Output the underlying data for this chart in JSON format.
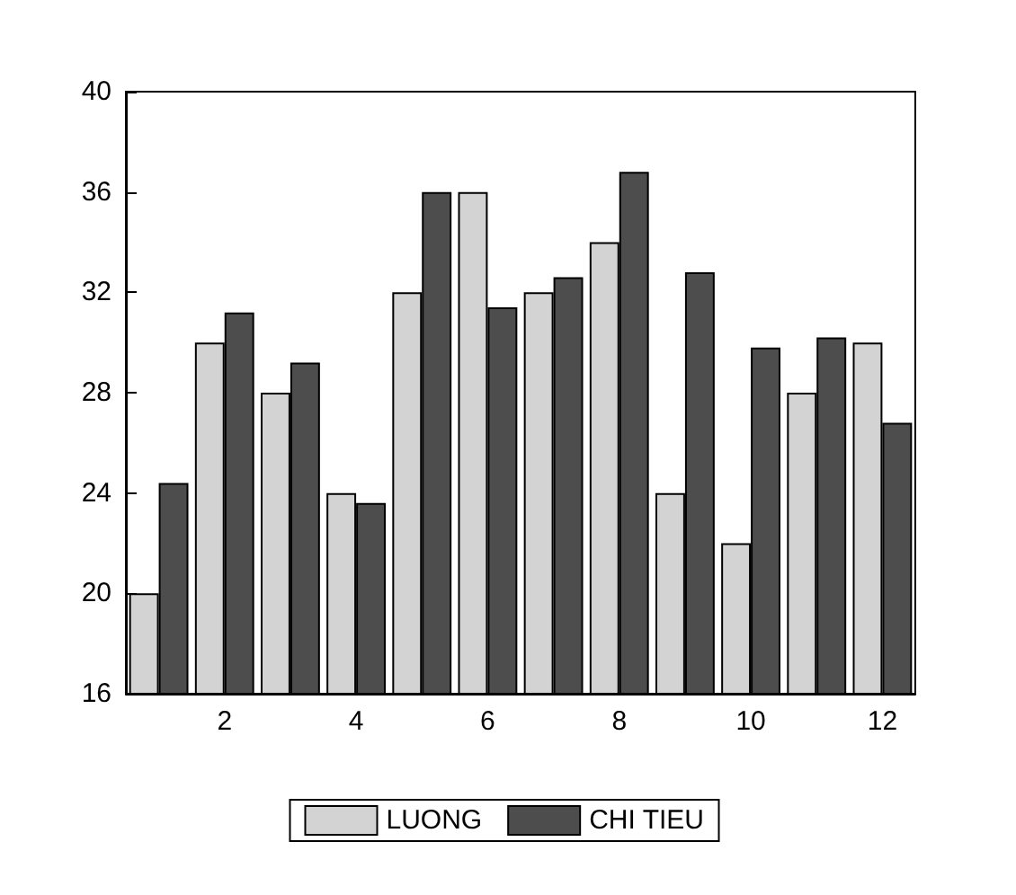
{
  "chart_data": {
    "type": "bar",
    "categories": [
      null,
      "2",
      null,
      "4",
      null,
      "6",
      null,
      "8",
      null,
      "10",
      null,
      "12"
    ],
    "series": [
      {
        "name": "LUONG",
        "color": "#d3d3d3",
        "values": [
          20,
          30,
          28,
          24,
          32,
          36,
          32,
          34,
          24,
          22,
          28,
          30
        ]
      },
      {
        "name": "CHI TIEU",
        "color": "#4d4d4d",
        "values": [
          24.4,
          31.2,
          29.2,
          23.6,
          36,
          31.4,
          32.6,
          36.8,
          32.8,
          29.8,
          30.2,
          26.8
        ]
      }
    ],
    "ylim": [
      16,
      40
    ],
    "yticks": [
      16,
      20,
      24,
      28,
      32,
      36,
      40
    ],
    "grid": false,
    "legend": "bottom"
  }
}
